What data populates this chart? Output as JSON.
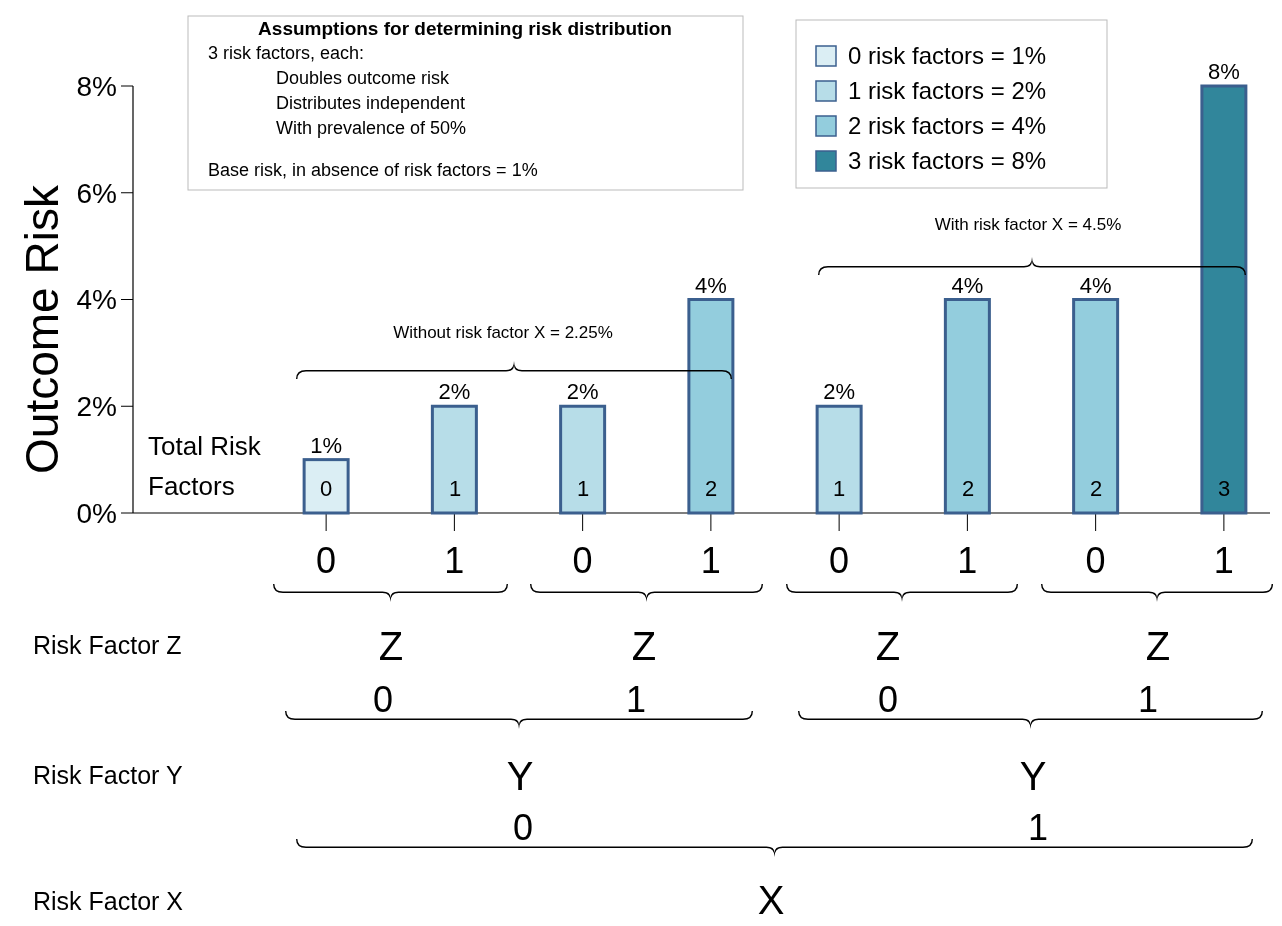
{
  "chart_data": {
    "type": "bar",
    "ylabel": "Outcome Risk",
    "categories": [
      "0",
      "1",
      "0",
      "1",
      "0",
      "1",
      "0",
      "1"
    ],
    "ylim": [
      0,
      8
    ],
    "yticks": [
      {
        "value": 0,
        "label": "0%"
      },
      {
        "value": 2,
        "label": "2%"
      },
      {
        "value": 4,
        "label": "4%"
      },
      {
        "value": 6,
        "label": "6%"
      },
      {
        "value": 8,
        "label": "8%"
      }
    ],
    "legend": "top right",
    "series": [
      {
        "name": "0 risk factors = 1%",
        "color": "#dbeef4",
        "values": [
          1,
          null,
          null,
          null,
          null,
          null,
          null,
          null
        ],
        "value_labels": [
          "1%",
          null,
          null,
          null,
          null,
          null,
          null,
          null
        ]
      },
      {
        "name": "1 risk factors = 2%",
        "color": "#b7dde8",
        "values": [
          null,
          2,
          2,
          null,
          2,
          null,
          null,
          null
        ],
        "value_labels": [
          null,
          "2%",
          "2%",
          null,
          "2%",
          null,
          null,
          null
        ]
      },
      {
        "name": "2 risk factors = 4%",
        "color": "#93cddd",
        "values": [
          null,
          null,
          null,
          4,
          null,
          4,
          4,
          null
        ],
        "value_labels": [
          null,
          null,
          null,
          "4%",
          null,
          "4%",
          "4%",
          null
        ]
      },
      {
        "name": "3 risk factors = 8%",
        "color": "#31869b",
        "values": [
          null,
          null,
          null,
          null,
          null,
          null,
          null,
          8
        ],
        "value_labels": [
          null,
          null,
          null,
          null,
          null,
          null,
          null,
          "8%"
        ]
      }
    ],
    "annotations": [
      "Assumptions for determining risk distribution",
      "3 risk factors, each:",
      "Doubles outcome risk",
      "Distributes independent",
      "With prevalence of 50%",
      "Base risk, in absence of risk factors = 1%",
      "Total Risk Factors",
      "0",
      "1",
      "1",
      "2",
      "1",
      "2",
      "2",
      "3",
      "Without risk factor X = 2.25%",
      "With risk factor X = 4.5%",
      "Risk Factor Z",
      "Z",
      "Z",
      "Z",
      "Z",
      "0",
      "1",
      "0",
      "1",
      "Risk Factor Y",
      "Y",
      "Y",
      "0",
      "1",
      "Risk Factor X",
      "X"
    ]
  }
}
